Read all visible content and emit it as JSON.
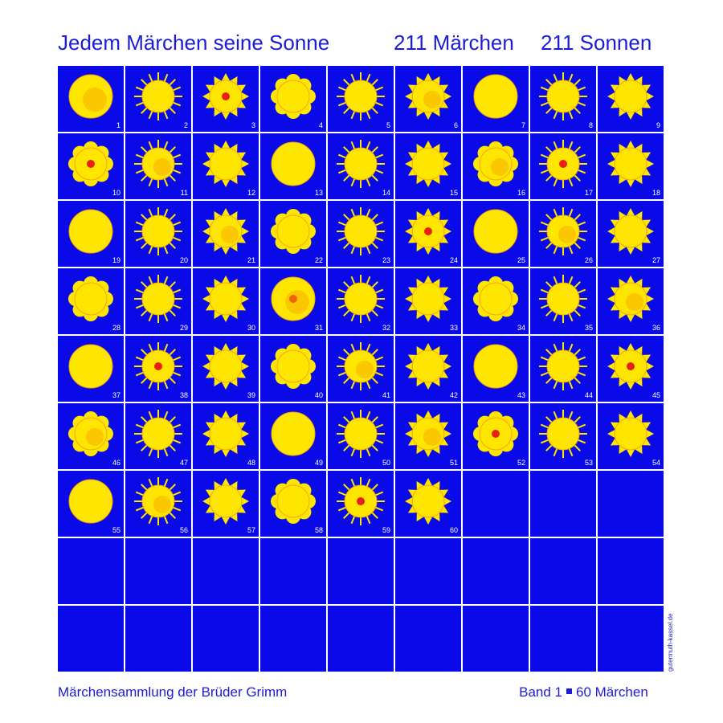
{
  "header": {
    "title": "Jedem Märchen seine Sonne",
    "count_tales": "211 Märchen",
    "count_suns": "211 Sonnen"
  },
  "tiles": [
    1,
    2,
    3,
    4,
    5,
    6,
    7,
    8,
    9,
    10,
    11,
    12,
    13,
    14,
    15,
    16,
    17,
    18,
    19,
    20,
    21,
    22,
    23,
    24,
    25,
    26,
    27,
    28,
    29,
    30,
    31,
    32,
    33,
    34,
    35,
    36,
    37,
    38,
    39,
    40,
    41,
    42,
    43,
    44,
    45,
    46,
    47,
    48,
    49,
    50,
    51,
    52,
    53,
    54,
    55,
    56,
    57,
    58,
    59,
    60
  ],
  "credit": "gutermuth-kassel.de",
  "footer": {
    "collection": "Märchensammlung der Brüder Grimm",
    "volume": "Band 1",
    "tales": "60 Märchen"
  }
}
